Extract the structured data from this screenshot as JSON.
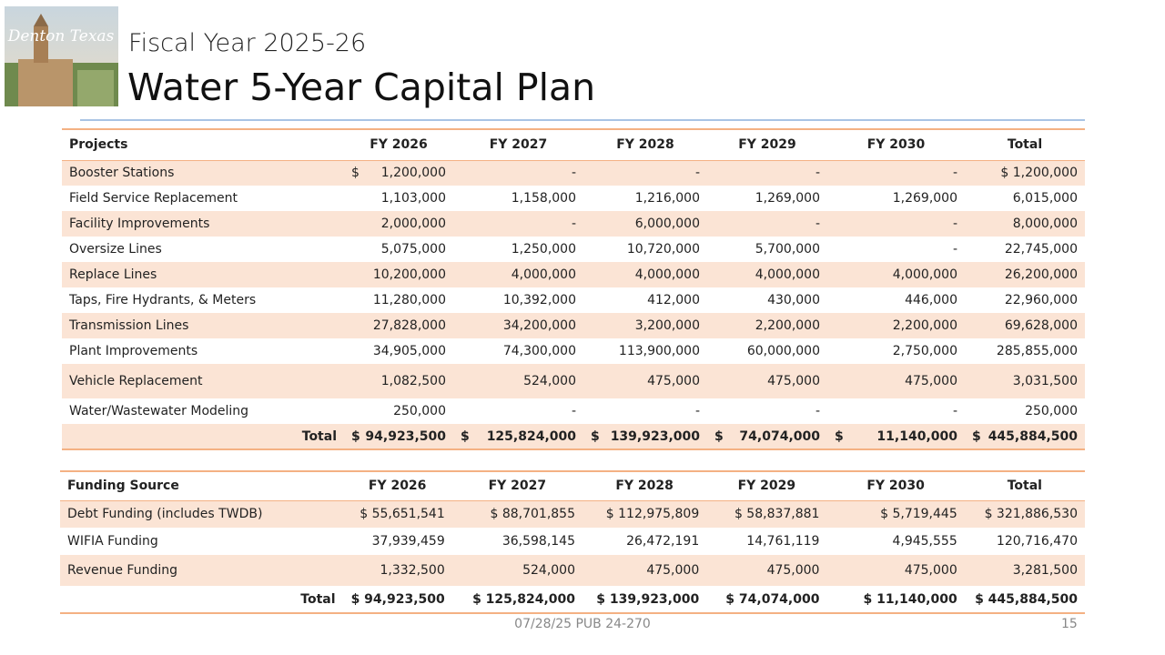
{
  "header": {
    "logo_text": "Denton Texas",
    "subtitle": "Fiscal Year 2025-26",
    "title": "Water 5-Year Capital Plan"
  },
  "projects": {
    "columns": [
      "Projects",
      "FY 2026",
      "FY 2027",
      "FY 2028",
      "FY 2029",
      "FY 2030",
      "Total"
    ],
    "rows": [
      [
        "Booster Stations",
        {
          "currency": "$",
          "amount": "1,200,000"
        },
        "-",
        "-",
        "-",
        "-",
        "$ 1,200,000"
      ],
      [
        "Field Service Replacement",
        "1,103,000",
        "1,158,000",
        "1,216,000",
        "1,269,000",
        "1,269,000",
        "6,015,000"
      ],
      [
        "Facility Improvements",
        "2,000,000",
        "-",
        "6,000,000",
        "-",
        "-",
        "8,000,000"
      ],
      [
        "Oversize Lines",
        "5,075,000",
        "1,250,000",
        "10,720,000",
        "5,700,000",
        "-",
        "22,745,000"
      ],
      [
        "Replace Lines",
        "10,200,000",
        "4,000,000",
        "4,000,000",
        "4,000,000",
        "4,000,000",
        "26,200,000"
      ],
      [
        "Taps, Fire Hydrants, & Meters",
        "11,280,000",
        "10,392,000",
        "412,000",
        "430,000",
        "446,000",
        "22,960,000"
      ],
      [
        "Transmission Lines",
        "27,828,000",
        "34,200,000",
        "3,200,000",
        "2,200,000",
        "2,200,000",
        "69,628,000"
      ],
      [
        "Plant Improvements",
        "34,905,000",
        "74,300,000",
        "113,900,000",
        "60,000,000",
        "2,750,000",
        "285,855,000"
      ],
      [
        "Vehicle Replacement",
        "1,082,500",
        "524,000",
        "475,000",
        "475,000",
        "475,000",
        "3,031,500"
      ],
      [
        "Water/Wastewater Modeling",
        "250,000",
        "-",
        "-",
        "-",
        "-",
        "250,000"
      ]
    ],
    "total": [
      "Total",
      {
        "currency": "$",
        "amount": "94,923,500"
      },
      {
        "currency": "$",
        "amount": "125,824,000"
      },
      {
        "currency": "$",
        "amount": "139,923,000"
      },
      {
        "currency": "$",
        "amount": "74,074,000"
      },
      {
        "currency": "$",
        "amount": "11,140,000"
      },
      {
        "currency": "$",
        "amount": "445,884,500"
      }
    ]
  },
  "funding": {
    "columns": [
      "Funding Source",
      "FY 2026",
      "FY 2027",
      "FY 2028",
      "FY 2029",
      "FY 2030",
      "Total"
    ],
    "rows": [
      [
        "Debt Funding (includes TWDB)",
        "$ 55,651,541",
        "$ 88,701,855",
        "$ 112,975,809",
        "$ 58,837,881",
        "$ 5,719,445",
        "$ 321,886,530"
      ],
      [
        "WIFIA Funding",
        "37,939,459",
        "36,598,145",
        "26,472,191",
        "14,761,119",
        "4,945,555",
        "120,716,470"
      ],
      [
        "Revenue Funding",
        "1,332,500",
        "524,000",
        "475,000",
        "475,000",
        "475,000",
        "3,281,500"
      ]
    ],
    "total": [
      "Total",
      "$ 94,923,500",
      "$ 125,824,000",
      "$ 139,923,000",
      "$ 74,074,000",
      "$ 11,140,000",
      "$ 445,884,500"
    ]
  },
  "footer": {
    "note": "07/28/25 PUB 24-270",
    "page": "15"
  }
}
